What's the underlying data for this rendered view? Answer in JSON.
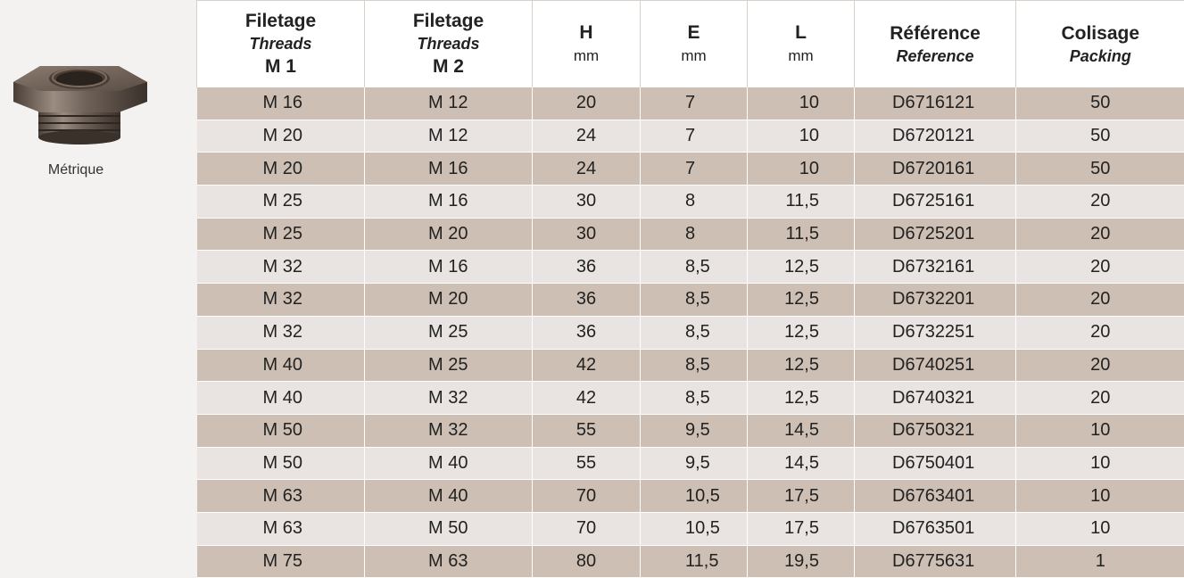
{
  "product": {
    "caption": "Métrique",
    "image_icon": "hex-reducer-fitting-image"
  },
  "table": {
    "headers": [
      {
        "main": "Filetage",
        "sub": "Threads",
        "extra": "M 1"
      },
      {
        "main": "Filetage",
        "sub": "Threads",
        "extra": "M 2"
      },
      {
        "main": "H",
        "unit": "mm"
      },
      {
        "main": "E",
        "unit": "mm"
      },
      {
        "main": "L",
        "unit": "mm"
      },
      {
        "main": "Référence",
        "sub": "Reference"
      },
      {
        "main": "Colisage",
        "sub": "Packing"
      }
    ],
    "rows": [
      [
        "M 16",
        "M 12",
        "20",
        "7",
        "10",
        "D6716121",
        "50"
      ],
      [
        "M 20",
        "M 12",
        "24",
        "7",
        "10",
        "D6720121",
        "50"
      ],
      [
        "M 20",
        "M 16",
        "24",
        "7",
        "10",
        "D6720161",
        "50"
      ],
      [
        "M 25",
        "M 16",
        "30",
        "8",
        "11,5",
        "D6725161",
        "20"
      ],
      [
        "M 25",
        "M 20",
        "30",
        "8",
        "11,5",
        "D6725201",
        "20"
      ],
      [
        "M 32",
        "M 16",
        "36",
        "8,5",
        "12,5",
        "D6732161",
        "20"
      ],
      [
        "M 32",
        "M 20",
        "36",
        "8,5",
        "12,5",
        "D6732201",
        "20"
      ],
      [
        "M 32",
        "M 25",
        "36",
        "8,5",
        "12,5",
        "D6732251",
        "20"
      ],
      [
        "M 40",
        "M 25",
        "42",
        "8,5",
        "12,5",
        "D6740251",
        "20"
      ],
      [
        "M 40",
        "M 32",
        "42",
        "8,5",
        "12,5",
        "D6740321",
        "20"
      ],
      [
        "M 50",
        "M 32",
        "55",
        "9,5",
        "14,5",
        "D6750321",
        "10"
      ],
      [
        "M 50",
        "M 40",
        "55",
        "9,5",
        "14,5",
        "D6750401",
        "10"
      ],
      [
        "M 63",
        "M 40",
        "70",
        "10,5",
        "17,5",
        "D6763401",
        "10"
      ],
      [
        "M 63",
        "M 50",
        "70",
        "10,5",
        "17,5",
        "D6763501",
        "10"
      ],
      [
        "M 75",
        "M 63",
        "80",
        "11,5",
        "19,5",
        "D6775631",
        "1"
      ]
    ]
  },
  "colors": {
    "row_dark": "#cdbfb3",
    "row_light": "#e9e4e1",
    "header_bg": "#ffffff"
  }
}
